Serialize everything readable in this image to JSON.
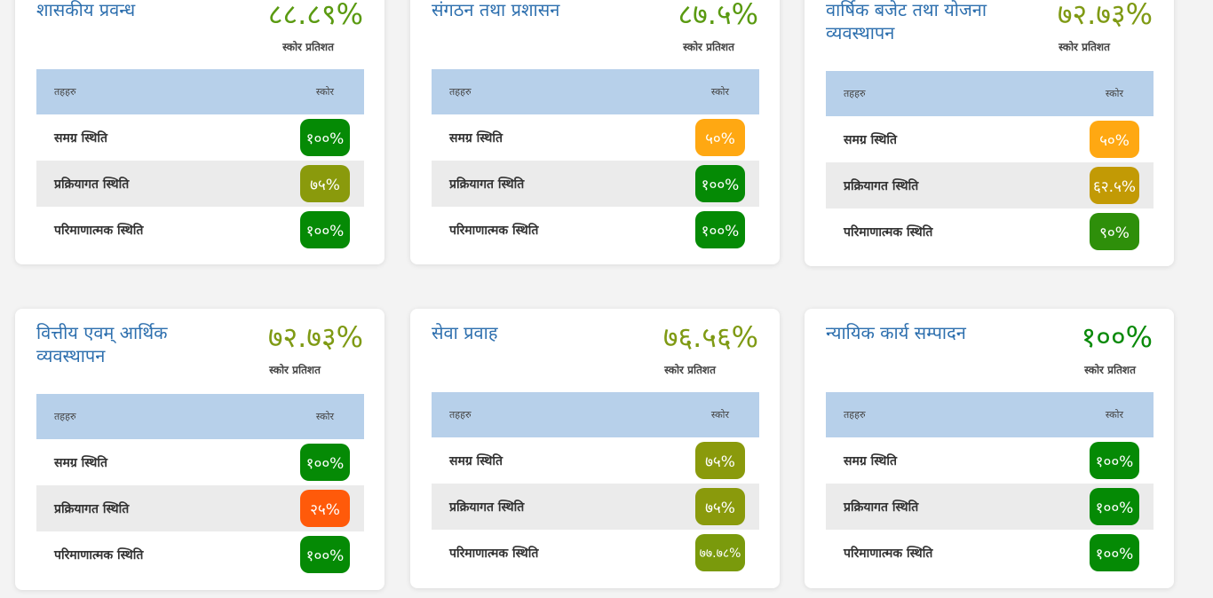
{
  "labels": {
    "score_percent": "स्कोर प्रतिशत",
    "col_indicators": "तहहरु",
    "col_score": "स्कोर"
  },
  "cards": [
    {
      "title": "शासकीय प्रवन्ध",
      "percent": "८८.८९%",
      "percent_color": "#5a9a11",
      "rows": [
        {
          "label": "समग्र स्थिति",
          "score": "१००%",
          "color": "#058a05"
        },
        {
          "label": "प्रक्रियागत स्थिति",
          "score": "७५%",
          "color": "#8a9a0c"
        },
        {
          "label": "परिमाणात्मक स्थिति",
          "score": "१००%",
          "color": "#058a05"
        }
      ]
    },
    {
      "title": "संगठन तथा प्रशासन",
      "percent": "८७.५%",
      "percent_color": "#5a9a11",
      "rows": [
        {
          "label": "समग्र स्थिति",
          "score": "५०%",
          "color": "#ffa812"
        },
        {
          "label": "प्रक्रियागत स्थिति",
          "score": "१००%",
          "color": "#058a05"
        },
        {
          "label": "परिमाणात्मक स्थिति",
          "score": "१००%",
          "color": "#058a05"
        }
      ]
    },
    {
      "title": "वार्षिक बजेट तथा योजना व्यवस्थापन",
      "percent": "७२.७३%",
      "percent_color": "#7f9a14",
      "rows": [
        {
          "label": "समग्र स्थिति",
          "score": "५०%",
          "color": "#ffa812"
        },
        {
          "label": "प्रक्रियागत स्थिति",
          "score": "६२.५%",
          "color": "#c29a05"
        },
        {
          "label": "परिमाणात्मक स्थिति",
          "score": "९०%",
          "color": "#2e8f0a"
        }
      ]
    },
    {
      "title": "वित्तीय एवम् आर्थिक व्यवस्थापन",
      "percent": "७२.७३%",
      "percent_color": "#7f9a14",
      "rows": [
        {
          "label": "समग्र स्थिति",
          "score": "१००%",
          "color": "#058a05"
        },
        {
          "label": "प्रक्रियागत स्थिति",
          "score": "२५%",
          "color": "#ff5a0a"
        },
        {
          "label": "परिमाणात्मक स्थिति",
          "score": "१००%",
          "color": "#058a05"
        }
      ]
    },
    {
      "title": "सेवा प्रवाह",
      "percent": "७६.५६%",
      "percent_color": "#7f9a14",
      "rows": [
        {
          "label": "समग्र स्थिति",
          "score": "७५%",
          "color": "#8a9a0c"
        },
        {
          "label": "प्रक्रियागत स्थिति",
          "score": "७५%",
          "color": "#8a9a0c"
        },
        {
          "label": "परिमाणात्मक स्थिति",
          "score": "७७.७८%",
          "color": "#7a9a0c"
        }
      ]
    },
    {
      "title": "न्यायिक कार्य सम्पादन",
      "percent": "१००%",
      "percent_color": "#0a8a0a",
      "rows": [
        {
          "label": "समग्र स्थिति",
          "score": "१००%",
          "color": "#058a05"
        },
        {
          "label": "प्रक्रियागत स्थिति",
          "score": "१००%",
          "color": "#058a05"
        },
        {
          "label": "परिमाणात्मक स्थिति",
          "score": "१००%",
          "color": "#058a05"
        }
      ]
    }
  ]
}
